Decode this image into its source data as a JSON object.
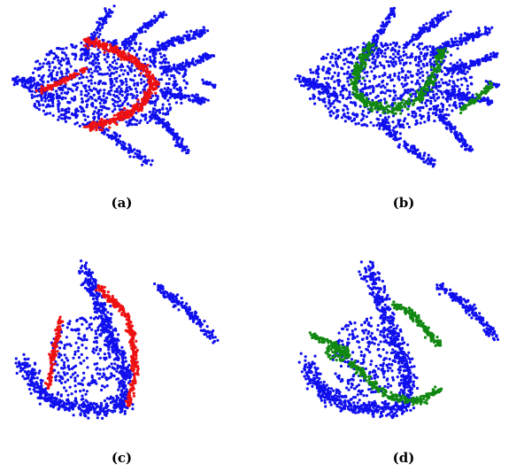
{
  "figure": {
    "colors": {
      "base": "#1010ee",
      "red": "#ee1111",
      "green": "#118811"
    }
  },
  "chart_data": [
    {
      "type": "scatter",
      "caption": "(a)",
      "base_color": "#1010ee",
      "overlay_color": "#ee1111",
      "shape": "hand",
      "overlay": "red-bands"
    },
    {
      "type": "scatter",
      "caption": "(b)",
      "base_color": "#1010ee",
      "overlay_color": "#118811",
      "shape": "hand",
      "overlay": "green-arc"
    },
    {
      "type": "scatter",
      "caption": "(c)",
      "base_color": "#1010ee",
      "overlay_color": "#ee1111",
      "shape": "hook",
      "overlay": "red-edges"
    },
    {
      "type": "scatter",
      "caption": "(d)",
      "base_color": "#1010ee",
      "overlay_color": "#118811",
      "shape": "hook",
      "overlay": "green-paths"
    }
  ]
}
